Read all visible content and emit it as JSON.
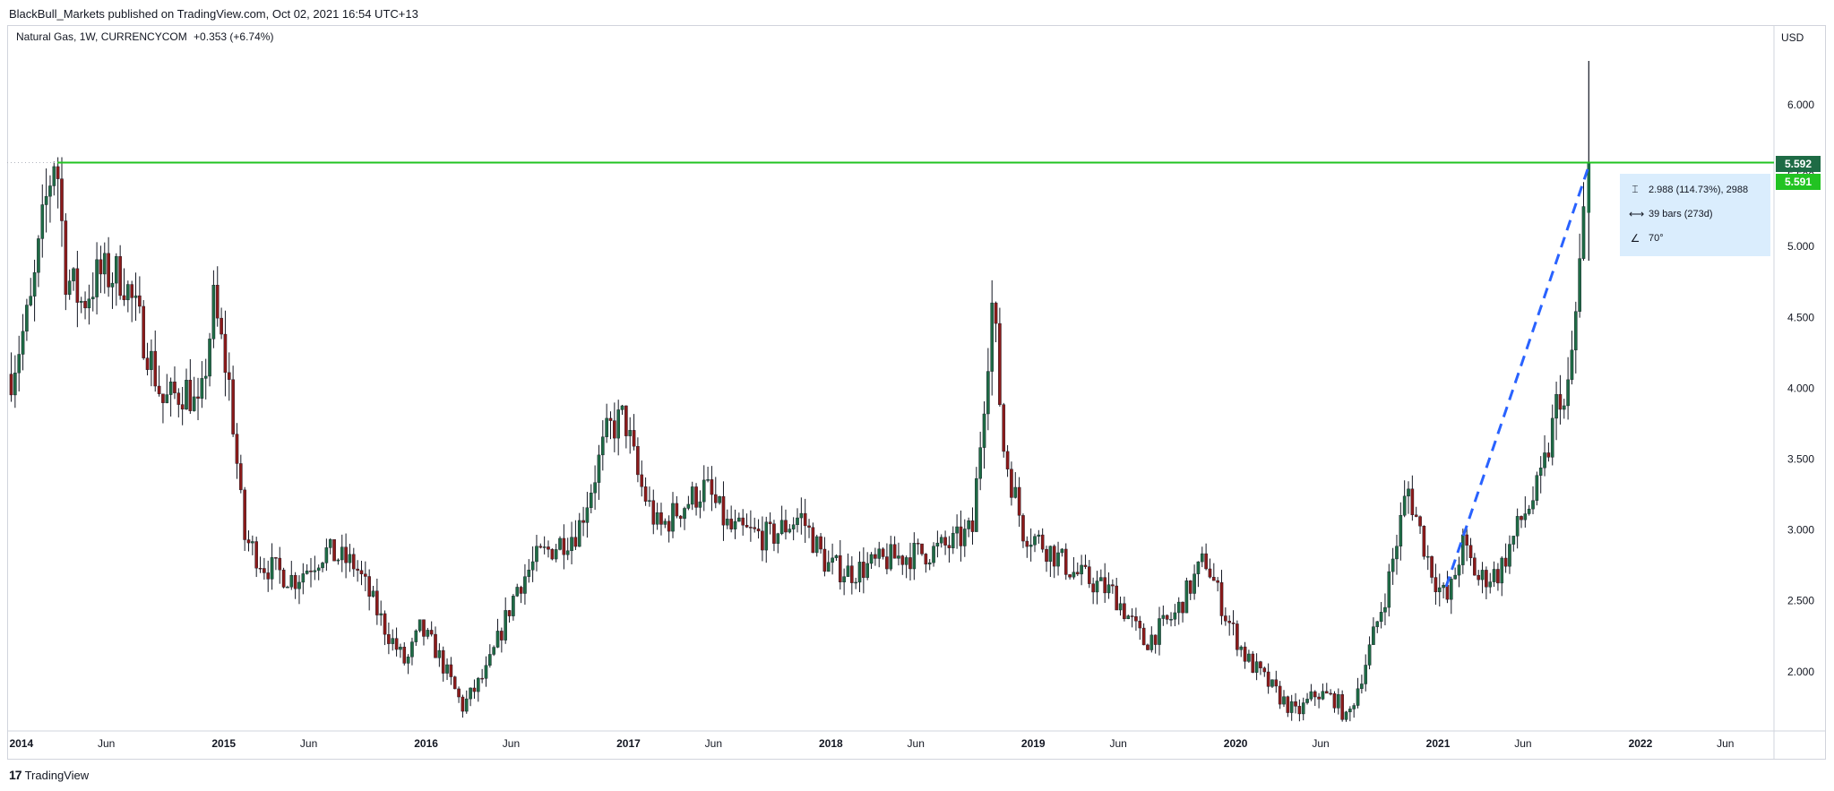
{
  "header": {
    "publish_line": "BlackBull_Markets published on TradingView.com, Oct 02, 2021 16:54 UTC+13"
  },
  "legend": {
    "symbol_line": "Natural Gas, 1W, CURRENCYCOM",
    "change": "+0.353 (+6.74%)"
  },
  "currency_label": "USD",
  "footer": {
    "brand_mark": "17",
    "brand": "TradingView"
  },
  "measure": {
    "price_range": "2.988 (114.73%), 2988",
    "bars_range": "39 bars (273d)",
    "angle": "70°"
  },
  "price_tags": {
    "horizontal_line": "5.592",
    "last_price": "5.591"
  },
  "colors": {
    "up": "#1e6b45",
    "down": "#8b1a1a",
    "horizontal_line": "#22c322",
    "trend_line": "#2962ff",
    "axis_text": "#131722"
  },
  "chart_data": {
    "type": "candlestick",
    "timeframe": "1W",
    "x_range": [
      "2014-01",
      "2022-07"
    ],
    "ylim": [
      1.55,
      6.5
    ],
    "y_ticks": [
      "2.000",
      "2.500",
      "3.000",
      "3.500",
      "4.000",
      "4.500",
      "5.000",
      "5.500",
      "6.000"
    ],
    "y_tick_values": [
      2.0,
      2.5,
      3.0,
      3.5,
      4.0,
      4.5,
      5.0,
      5.5,
      6.0
    ],
    "x_ticks": [
      {
        "label": "2014",
        "t": 2014.0,
        "bold": true
      },
      {
        "label": "Jun",
        "t": 2014.42,
        "bold": false
      },
      {
        "label": "2015",
        "t": 2015.0,
        "bold": true
      },
      {
        "label": "Jun",
        "t": 2015.42,
        "bold": false
      },
      {
        "label": "2016",
        "t": 2016.0,
        "bold": true
      },
      {
        "label": "Jun",
        "t": 2016.42,
        "bold": false
      },
      {
        "label": "2017",
        "t": 2017.0,
        "bold": true
      },
      {
        "label": "Jun",
        "t": 2017.42,
        "bold": false
      },
      {
        "label": "2018",
        "t": 2018.0,
        "bold": true
      },
      {
        "label": "Jun",
        "t": 2018.42,
        "bold": false
      },
      {
        "label": "2019",
        "t": 2019.0,
        "bold": true
      },
      {
        "label": "Jun",
        "t": 2019.42,
        "bold": false
      },
      {
        "label": "2020",
        "t": 2020.0,
        "bold": true
      },
      {
        "label": "Jun",
        "t": 2020.42,
        "bold": false
      },
      {
        "label": "2021",
        "t": 2021.0,
        "bold": true
      },
      {
        "label": "Jun",
        "t": 2021.42,
        "bold": false
      },
      {
        "label": "2022",
        "t": 2022.0,
        "bold": true
      },
      {
        "label": "Jun",
        "t": 2022.42,
        "bold": false
      }
    ],
    "price_path": [
      [
        2013.95,
        4.1
      ],
      [
        2014.05,
        4.6
      ],
      [
        2014.12,
        5.3
      ],
      [
        2014.17,
        5.7
      ],
      [
        2014.22,
        4.8
      ],
      [
        2014.3,
        4.6
      ],
      [
        2014.38,
        4.8
      ],
      [
        2014.5,
        4.8
      ],
      [
        2014.62,
        4.3
      ],
      [
        2014.7,
        3.9
      ],
      [
        2014.82,
        4.0
      ],
      [
        2014.88,
        3.8
      ],
      [
        2014.95,
        4.6
      ],
      [
        2015.03,
        4.0
      ],
      [
        2015.1,
        2.95
      ],
      [
        2015.2,
        2.75
      ],
      [
        2015.35,
        2.65
      ],
      [
        2015.5,
        2.85
      ],
      [
        2015.65,
        2.75
      ],
      [
        2015.8,
        2.3
      ],
      [
        2015.9,
        2.05
      ],
      [
        2015.97,
        2.3
      ],
      [
        2016.05,
        2.15
      ],
      [
        2016.18,
        1.75
      ],
      [
        2016.3,
        2.0
      ],
      [
        2016.45,
        2.6
      ],
      [
        2016.55,
        2.8
      ],
      [
        2016.75,
        3.0
      ],
      [
        2016.9,
        3.7
      ],
      [
        2016.98,
        3.8
      ],
      [
        2017.05,
        3.35
      ],
      [
        2017.15,
        3.0
      ],
      [
        2017.25,
        3.15
      ],
      [
        2017.38,
        3.3
      ],
      [
        2017.5,
        3.0
      ],
      [
        2017.7,
        2.95
      ],
      [
        2017.85,
        3.1
      ],
      [
        2017.98,
        2.75
      ],
      [
        2018.1,
        2.7
      ],
      [
        2018.3,
        2.8
      ],
      [
        2018.5,
        2.85
      ],
      [
        2018.6,
        2.9
      ],
      [
        2018.7,
        3.0
      ],
      [
        2018.8,
        4.65
      ],
      [
        2018.85,
        3.6
      ],
      [
        2018.95,
        3.0
      ],
      [
        2019.05,
        2.9
      ],
      [
        2019.2,
        2.7
      ],
      [
        2019.4,
        2.55
      ],
      [
        2019.55,
        2.2
      ],
      [
        2019.7,
        2.4
      ],
      [
        2019.85,
        2.8
      ],
      [
        2019.95,
        2.4
      ],
      [
        2020.05,
        2.1
      ],
      [
        2020.2,
        1.85
      ],
      [
        2020.3,
        1.7
      ],
      [
        2020.4,
        1.85
      ],
      [
        2020.5,
        1.8
      ],
      [
        2020.55,
        1.65
      ],
      [
        2020.65,
        2.1
      ],
      [
        2020.75,
        2.6
      ],
      [
        2020.85,
        3.3
      ],
      [
        2020.95,
        2.8
      ],
      [
        2021.0,
        2.6
      ],
      [
        2021.05,
        2.5
      ],
      [
        2021.12,
        2.9
      ],
      [
        2021.2,
        2.65
      ],
      [
        2021.3,
        2.7
      ],
      [
        2021.42,
        3.1
      ],
      [
        2021.5,
        3.3
      ],
      [
        2021.55,
        3.6
      ],
      [
        2021.6,
        4.0
      ],
      [
        2021.63,
        3.8
      ],
      [
        2021.68,
        4.5
      ],
      [
        2021.72,
        5.2
      ],
      [
        2021.74,
        5.55
      ]
    ],
    "horizontal_line": 5.592,
    "trend_line": {
      "from": [
        2021.04,
        2.6
      ],
      "to": [
        2021.75,
        5.59
      ]
    },
    "last_candle": {
      "t": 2021.745,
      "open": 5.238,
      "high": 6.31,
      "low": 4.9,
      "close": 5.591
    }
  }
}
